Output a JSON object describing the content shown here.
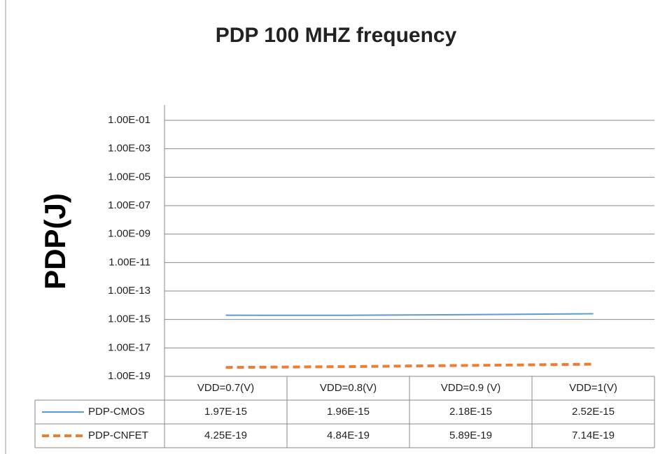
{
  "chart_data": {
    "type": "line",
    "title": "PDP 100 MHZ frequency",
    "y_label": "PDP(J)",
    "categories": [
      "VDD=0.7(V)",
      "VDD=0.8(V)",
      "VDD=0.9 (V)",
      "VDD=1(V)"
    ],
    "series": [
      {
        "name": "PDP-CMOS",
        "color": "#5b9bd5",
        "dashed": false,
        "values": [
          1.97e-15,
          1.96e-15,
          2.18e-15,
          2.52e-15
        ],
        "value_labels": [
          "1.97E-15",
          "1.96E-15",
          "2.18E-15",
          "2.52E-15"
        ]
      },
      {
        "name": "PDP-CNFET",
        "color": "#ed7d31",
        "dashed": true,
        "values": [
          4.25e-19,
          4.84e-19,
          5.89e-19,
          7.14e-19
        ],
        "value_labels": [
          "4.25E-19",
          "4.84E-19",
          "5.89E-19",
          "7.14E-19"
        ]
      }
    ],
    "log_scale": true,
    "ylim": [
      1e-19,
      0.1
    ],
    "yticks": [
      {
        "value": 1e-19,
        "label": "1.00E-19"
      },
      {
        "value": 1e-17,
        "label": "1.00E-17"
      },
      {
        "value": 1e-15,
        "label": "1.00E-15"
      },
      {
        "value": 1e-13,
        "label": "1.00E-13"
      },
      {
        "value": 1e-11,
        "label": "1.00E-11"
      },
      {
        "value": 1e-09,
        "label": "1.00E-09"
      },
      {
        "value": 1e-07,
        "label": "1.00E-07"
      },
      {
        "value": 1e-05,
        "label": "1.00E-05"
      },
      {
        "value": 0.001,
        "label": "1.00E-03"
      },
      {
        "value": 0.1,
        "label": "1.00E-01"
      }
    ],
    "grid": true,
    "data_table": true
  }
}
